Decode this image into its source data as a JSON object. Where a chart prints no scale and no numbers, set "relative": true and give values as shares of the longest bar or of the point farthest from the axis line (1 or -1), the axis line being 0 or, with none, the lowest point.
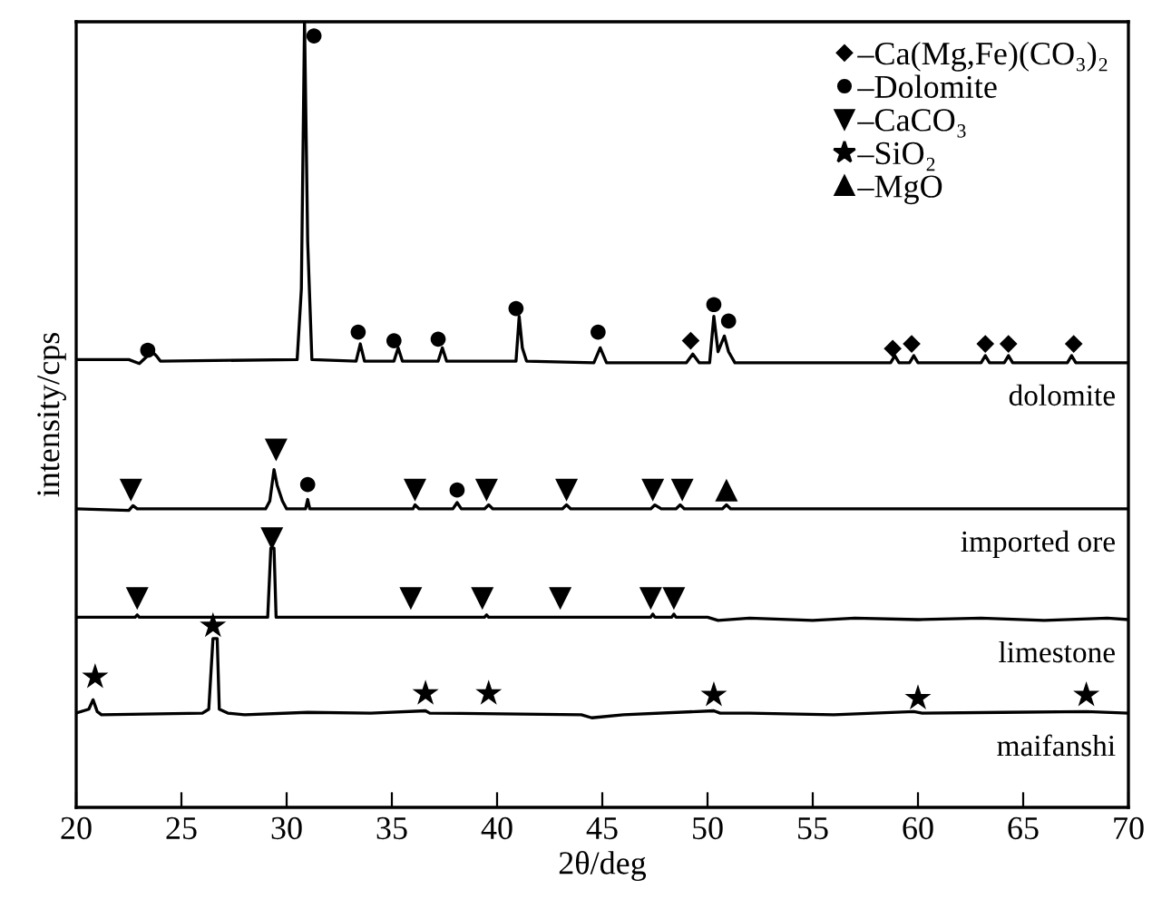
{
  "chart_data": {
    "type": "line",
    "relative": true,
    "xlabel": "2θ/deg",
    "ylabel": "intensity/cps",
    "xlim": [
      20,
      70
    ],
    "xticks": [
      20,
      25,
      30,
      35,
      40,
      45,
      50,
      55,
      60,
      65,
      70
    ],
    "legend": "top right",
    "grid": false,
    "tick_labels": "x",
    "series": [
      {
        "name": "dolomite",
        "color": "#000000",
        "marker": "none",
        "x": [
          20,
          22.5,
          23.0,
          23.6,
          23.8,
          24.0,
          30.5,
          30.7,
          30.85,
          31.0,
          31.2,
          33.3,
          33.5,
          33.7,
          35.1,
          35.3,
          35.5,
          37.2,
          37.4,
          37.6,
          40.9,
          41.05,
          41.2,
          41.4,
          44.6,
          44.9,
          45.2,
          49.0,
          49.3,
          49.6,
          50.1,
          50.3,
          50.5,
          50.8,
          51.0,
          51.3,
          58.7,
          58.9,
          59.1,
          59.6,
          59.8,
          60.0,
          63.0,
          63.2,
          63.4,
          64.1,
          64.3,
          64.5,
          67.1,
          67.3,
          67.5,
          70
        ],
        "values": [
          0.57,
          0.57,
          0.565,
          0.58,
          0.575,
          0.568,
          0.57,
          0.66,
          1.0,
          0.72,
          0.57,
          0.568,
          0.59,
          0.568,
          0.568,
          0.585,
          0.568,
          0.568,
          0.585,
          0.568,
          0.568,
          0.625,
          0.585,
          0.568,
          0.566,
          0.585,
          0.566,
          0.566,
          0.577,
          0.566,
          0.566,
          0.625,
          0.58,
          0.6,
          0.58,
          0.566,
          0.566,
          0.575,
          0.566,
          0.566,
          0.575,
          0.566,
          0.566,
          0.575,
          0.566,
          0.566,
          0.575,
          0.566,
          0.566,
          0.575,
          0.566,
          0.566
        ]
      },
      {
        "name": "imported ore",
        "color": "#000000",
        "marker": "none",
        "x": [
          20,
          22.5,
          22.7,
          22.9,
          29.0,
          29.2,
          29.4,
          29.55,
          29.8,
          30.0,
          30.9,
          31.0,
          31.1,
          36.0,
          36.1,
          36.3,
          37.9,
          38.1,
          38.3,
          39.4,
          39.6,
          39.8,
          43.1,
          43.3,
          43.5,
          47.3,
          47.5,
          47.8,
          48.5,
          48.7,
          48.9,
          50.7,
          50.9,
          51.1,
          70
        ],
        "values": [
          0.38,
          0.378,
          0.384,
          0.38,
          0.38,
          0.39,
          0.43,
          0.41,
          0.39,
          0.38,
          0.38,
          0.392,
          0.38,
          0.38,
          0.385,
          0.38,
          0.38,
          0.388,
          0.38,
          0.38,
          0.385,
          0.38,
          0.38,
          0.385,
          0.38,
          0.38,
          0.385,
          0.38,
          0.38,
          0.385,
          0.38,
          0.38,
          0.385,
          0.38,
          0.38
        ]
      },
      {
        "name": "limestone",
        "color": "#000000",
        "marker": "none",
        "x": [
          20,
          22.8,
          22.9,
          23.0,
          29.1,
          29.25,
          29.4,
          29.5,
          36.0,
          39.4,
          39.5,
          39.6,
          47.3,
          47.4,
          47.5,
          48.3,
          48.4,
          48.5,
          50.0,
          50.5,
          52,
          55,
          57,
          60,
          63,
          66,
          69,
          70
        ],
        "values": [
          0.242,
          0.242,
          0.245,
          0.242,
          0.242,
          0.33,
          0.33,
          0.242,
          0.242,
          0.242,
          0.245,
          0.242,
          0.242,
          0.246,
          0.242,
          0.242,
          0.246,
          0.242,
          0.242,
          0.238,
          0.241,
          0.238,
          0.241,
          0.239,
          0.241,
          0.238,
          0.241,
          0.239
        ]
      },
      {
        "name": "maifanshi",
        "color": "#000000",
        "marker": "none",
        "x": [
          20,
          20.6,
          20.8,
          21.0,
          21.2,
          26.0,
          26.3,
          26.5,
          26.7,
          26.8,
          27.2,
          28,
          31,
          34,
          36.6,
          36.8,
          44.0,
          44.5,
          46,
          50.3,
          50.6,
          52,
          56,
          59.8,
          60.2,
          64,
          68,
          70
        ],
        "values": [
          0.12,
          0.125,
          0.137,
          0.122,
          0.118,
          0.12,
          0.125,
          0.215,
          0.215,
          0.125,
          0.12,
          0.118,
          0.121,
          0.12,
          0.123,
          0.12,
          0.118,
          0.114,
          0.118,
          0.123,
          0.12,
          0.12,
          0.118,
          0.122,
          0.12,
          0.121,
          0.122,
          0.12
        ]
      },
      {
        "name": "–Ca(Mg,Fe)(CO₃)₂",
        "type": "scatter",
        "color": "#000000",
        "marker": "diamond",
        "x": [
          49.2,
          58.8,
          59.7,
          63.2,
          64.3,
          67.4
        ],
        "values": [
          0.594,
          0.584,
          0.59,
          0.59,
          0.59,
          0.59
        ]
      },
      {
        "name": "–Dolomite",
        "type": "scatter",
        "color": "#000000",
        "marker": "circle",
        "x": [
          23.4,
          31.3,
          33.4,
          35.1,
          37.2,
          40.9,
          44.8,
          50.3,
          51.0,
          31.0,
          38.1
        ],
        "values": [
          0.582,
          0.982,
          0.605,
          0.594,
          0.596,
          0.635,
          0.605,
          0.64,
          0.619,
          0.411,
          0.404
        ]
      },
      {
        "name": "–CaCO₃",
        "type": "scatter",
        "color": "#000000",
        "marker": "triangle_down",
        "x": [
          22.6,
          29.5,
          36.1,
          39.5,
          43.3,
          47.4,
          48.8,
          22.9,
          29.3,
          35.9,
          39.3,
          43.0,
          47.3,
          48.4
        ],
        "values": [
          0.404,
          0.455,
          0.404,
          0.404,
          0.404,
          0.404,
          0.404,
          0.266,
          0.342,
          0.266,
          0.266,
          0.266,
          0.266,
          0.266
        ]
      },
      {
        "name": "–SiO₂",
        "type": "scatter",
        "color": "#000000",
        "marker": "star",
        "x": [
          20.9,
          26.5,
          36.6,
          39.6,
          50.3,
          60.0,
          68.0
        ],
        "values": [
          0.166,
          0.231,
          0.145,
          0.145,
          0.143,
          0.139,
          0.143
        ]
      },
      {
        "name": "–MgO",
        "type": "scatter",
        "color": "#000000",
        "marker": "triangle",
        "x": [
          50.9
        ],
        "values": [
          0.404
        ]
      }
    ]
  }
}
